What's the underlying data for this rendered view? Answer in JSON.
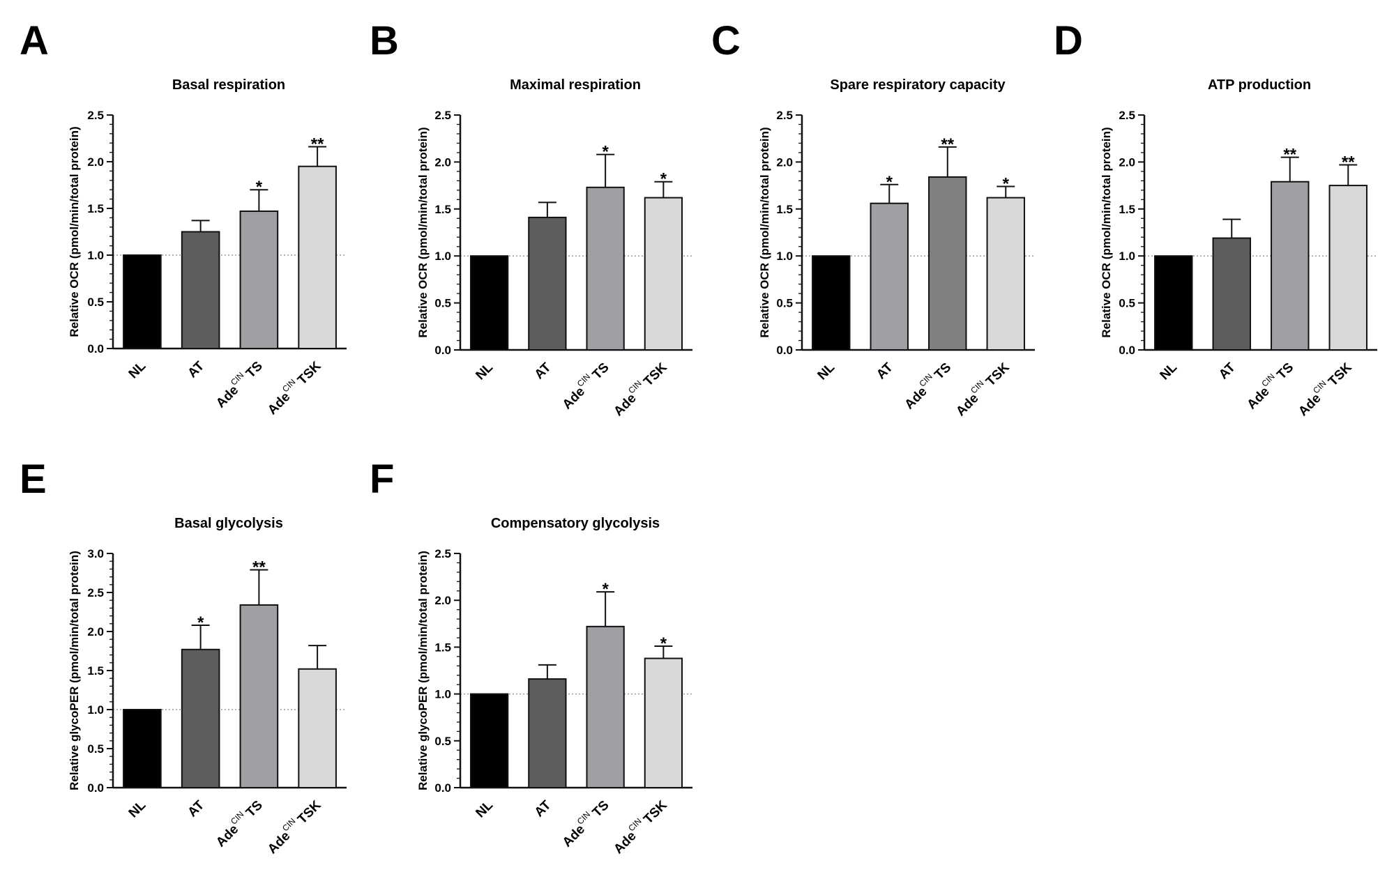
{
  "figure": {
    "colors": {
      "bar_stroke": "#111111",
      "axis": "#111111",
      "reference_line": "#9a9a9a"
    },
    "bar_colors": [
      "#000000",
      "#5d5d5d",
      "#a0a0a4",
      "#d9d9d9"
    ]
  },
  "chart_data": [
    {
      "panel": "A",
      "type": "bar",
      "title": "Basal respiration",
      "ylabel": "Relative OCR (pmol/min/total protein)",
      "ylim": [
        0,
        2.5
      ],
      "yticks": [
        "0.0",
        "0.5",
        "1.0",
        "1.5",
        "2.0",
        "2.5"
      ],
      "reference_line": 1.0,
      "categories": [
        {
          "main": "NL",
          "sup": "",
          "suffix": ""
        },
        {
          "main": "AT",
          "sup": "",
          "suffix": ""
        },
        {
          "main": "Ade",
          "sup": "CIN",
          "suffix": "TS"
        },
        {
          "main": "Ade",
          "sup": "CIN",
          "suffix": "TSK"
        }
      ],
      "values": [
        1.0,
        1.25,
        1.47,
        1.95
      ],
      "errors": [
        0,
        0.12,
        0.23,
        0.21
      ],
      "significance": [
        "",
        "",
        "*",
        "**"
      ],
      "bar_colors": [
        "#000000",
        "#5d5d5d",
        "#a0a0a4",
        "#d9d9d9"
      ]
    },
    {
      "panel": "B",
      "type": "bar",
      "title": "Maximal respiration",
      "ylabel": "Relative OCR (pmol/min/total protein)",
      "ylim": [
        0,
        2.5
      ],
      "yticks": [
        "0.0",
        "0.5",
        "1.0",
        "1.5",
        "2.0",
        "2.5"
      ],
      "reference_line": 1.0,
      "categories": [
        {
          "main": "NL",
          "sup": "",
          "suffix": ""
        },
        {
          "main": "AT",
          "sup": "",
          "suffix": ""
        },
        {
          "main": "Ade",
          "sup": "CIN",
          "suffix": "TS"
        },
        {
          "main": "Ade",
          "sup": "CIN",
          "suffix": "TSK"
        }
      ],
      "values": [
        1.0,
        1.41,
        1.73,
        1.62
      ],
      "errors": [
        0,
        0.16,
        0.35,
        0.17
      ],
      "significance": [
        "",
        "",
        "*",
        "*"
      ],
      "bar_colors": [
        "#000000",
        "#5d5d5d",
        "#a0a0a4",
        "#d9d9d9"
      ]
    },
    {
      "panel": "C",
      "type": "bar",
      "title": "Spare respiratory capacity",
      "ylabel": "Relative OCR (pmol/min/total protein)",
      "ylim": [
        0,
        2.5
      ],
      "yticks": [
        "0.0",
        "0.5",
        "1.0",
        "1.5",
        "2.0",
        "2.5"
      ],
      "reference_line": 1.0,
      "categories": [
        {
          "main": "NL",
          "sup": "",
          "suffix": ""
        },
        {
          "main": "AT",
          "sup": "",
          "suffix": ""
        },
        {
          "main": "Ade",
          "sup": "CIN",
          "suffix": "TS"
        },
        {
          "main": "Ade",
          "sup": "CIN",
          "suffix": "TSK"
        }
      ],
      "values": [
        1.0,
        1.56,
        1.84,
        1.62
      ],
      "errors": [
        0,
        0.2,
        0.32,
        0.12
      ],
      "significance": [
        "",
        "*",
        "**",
        "*"
      ],
      "bar_colors": [
        "#000000",
        "#a0a0a4",
        "#808080",
        "#d9d9d9"
      ]
    },
    {
      "panel": "D",
      "type": "bar",
      "title": "ATP production",
      "ylabel": "Relative OCR (pmol/min/total protein)",
      "ylim": [
        0,
        2.5
      ],
      "yticks": [
        "0.0",
        "0.5",
        "1.0",
        "1.5",
        "2.0",
        "2.5"
      ],
      "reference_line": 1.0,
      "categories": [
        {
          "main": "NL",
          "sup": "",
          "suffix": ""
        },
        {
          "main": "AT",
          "sup": "",
          "suffix": ""
        },
        {
          "main": "Ade",
          "sup": "CIN",
          "suffix": "TS"
        },
        {
          "main": "Ade",
          "sup": "CIN",
          "suffix": "TSK"
        }
      ],
      "values": [
        1.0,
        1.19,
        1.79,
        1.75
      ],
      "errors": [
        0,
        0.2,
        0.26,
        0.22
      ],
      "significance": [
        "",
        "",
        "**",
        "**"
      ],
      "bar_colors": [
        "#000000",
        "#5d5d5d",
        "#a0a0a4",
        "#d9d9d9"
      ]
    },
    {
      "panel": "E",
      "type": "bar",
      "title": "Basal glycolysis",
      "ylabel": "Relative glycoPER (pmol/min/total protein)",
      "ylim": [
        0,
        3.0
      ],
      "yticks": [
        "0.0",
        "0.5",
        "1.0",
        "1.5",
        "2.0",
        "2.5",
        "3.0"
      ],
      "reference_line": 1.0,
      "categories": [
        {
          "main": "NL",
          "sup": "",
          "suffix": ""
        },
        {
          "main": "AT",
          "sup": "",
          "suffix": ""
        },
        {
          "main": "Ade",
          "sup": "CIN",
          "suffix": "TS"
        },
        {
          "main": "Ade",
          "sup": "CIN",
          "suffix": "TSK"
        }
      ],
      "values": [
        1.0,
        1.77,
        2.34,
        1.52
      ],
      "errors": [
        0,
        0.31,
        0.45,
        0.3
      ],
      "significance": [
        "",
        "*",
        "**",
        ""
      ],
      "bar_colors": [
        "#000000",
        "#5d5d5d",
        "#a0a0a4",
        "#d9d9d9"
      ]
    },
    {
      "panel": "F",
      "type": "bar",
      "title": "Compensatory glycolysis",
      "ylabel": "Relative glycoPER (pmol/min/total protein)",
      "ylim": [
        0,
        2.5
      ],
      "yticks": [
        "0.0",
        "0.5",
        "1.0",
        "1.5",
        "2.0",
        "2.5"
      ],
      "reference_line": 1.0,
      "categories": [
        {
          "main": "NL",
          "sup": "",
          "suffix": ""
        },
        {
          "main": "AT",
          "sup": "",
          "suffix": ""
        },
        {
          "main": "Ade",
          "sup": "CIN",
          "suffix": "TS"
        },
        {
          "main": "Ade",
          "sup": "CIN",
          "suffix": "TSK"
        }
      ],
      "values": [
        1.0,
        1.16,
        1.72,
        1.38
      ],
      "errors": [
        0,
        0.15,
        0.37,
        0.13
      ],
      "significance": [
        "",
        "",
        "*",
        "*"
      ],
      "bar_colors": [
        "#000000",
        "#5d5d5d",
        "#a0a0a4",
        "#d9d9d9"
      ]
    }
  ]
}
